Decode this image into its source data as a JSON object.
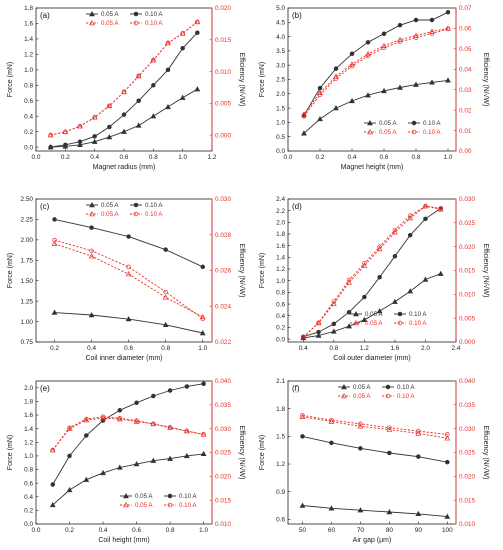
{
  "figure": {
    "colors": {
      "force": "#333333",
      "efficiency": "#e8312a",
      "axis": "#222222"
    }
  },
  "chart_data": [
    {
      "type": "line",
      "panel": "(a)",
      "xlabel": "Magnet radius (mm)",
      "ylabel": "Force (mN)",
      "y2label": "Efficiency (N/√W)",
      "xlim": [
        0.0,
        1.2
      ],
      "xticks": [
        0.0,
        0.2,
        0.4,
        0.6,
        0.8,
        1.0,
        1.2
      ],
      "ylim": [
        -0.05,
        1.8
      ],
      "yticks": [
        0.0,
        0.2,
        0.4,
        0.6,
        0.8,
        1.0,
        1.2,
        1.4,
        1.6,
        1.8
      ],
      "y2lim": [
        -0.0025,
        0.02
      ],
      "y2ticks": [
        0.0,
        0.005,
        0.01,
        0.015,
        0.02
      ],
      "y2ticklabels": [
        "0.000",
        "0.005",
        "0.010",
        "0.015",
        "0.020"
      ],
      "x": [
        0.1,
        0.2,
        0.3,
        0.4,
        0.5,
        0.6,
        0.7,
        0.8,
        0.9,
        1.0,
        1.1
      ],
      "series": [
        {
          "name": "0.05 A",
          "axis": "left",
          "style": "solid-triangle",
          "values": [
            0.0,
            0.01,
            0.03,
            0.07,
            0.13,
            0.2,
            0.28,
            0.4,
            0.52,
            0.64,
            0.75
          ]
        },
        {
          "name": "0.10 A",
          "axis": "left",
          "style": "solid-circle",
          "values": [
            0.0,
            0.03,
            0.07,
            0.14,
            0.26,
            0.42,
            0.6,
            0.8,
            1.0,
            1.28,
            1.48
          ]
        },
        {
          "name": "0.05 A",
          "axis": "right",
          "style": "dashed-triangle",
          "values": [
            0.0,
            0.0005,
            0.0014,
            0.0028,
            0.0046,
            0.0068,
            0.0093,
            0.0118,
            0.0145,
            0.016,
            0.0178
          ]
        },
        {
          "name": "0.10 A",
          "axis": "right",
          "style": "dashed-circle",
          "values": [
            0.0,
            0.0005,
            0.0014,
            0.0028,
            0.0046,
            0.0068,
            0.0093,
            0.0118,
            0.0145,
            0.016,
            0.0178
          ]
        }
      ],
      "legend": "top-left"
    },
    {
      "type": "line",
      "panel": "(b)",
      "xlabel": "Magnet height (mm)",
      "ylabel": "Force (mN)",
      "y2label": "Efficiency (N/√W)",
      "xlim": [
        0.0,
        1.05
      ],
      "xticks": [
        0.0,
        0.2,
        0.4,
        0.6,
        0.8,
        1.0
      ],
      "ylim": [
        0.0,
        5.0
      ],
      "yticks": [
        0.0,
        0.5,
        1.0,
        1.5,
        2.0,
        2.5,
        3.0,
        3.5,
        4.0,
        4.5,
        5.0
      ],
      "y2lim": [
        0.0,
        0.07
      ],
      "y2ticks": [
        0.0,
        0.01,
        0.02,
        0.03,
        0.04,
        0.05,
        0.06,
        0.07
      ],
      "y2ticklabels": [
        "0.00",
        "0.01",
        "0.02",
        "0.03",
        "0.04",
        "0.05",
        "0.06",
        "0.07"
      ],
      "x": [
        0.1,
        0.2,
        0.3,
        0.4,
        0.5,
        0.6,
        0.7,
        0.8,
        0.9,
        1.0
      ],
      "series": [
        {
          "name": "0.05 A",
          "axis": "left",
          "style": "solid-triangle",
          "values": [
            0.62,
            1.12,
            1.5,
            1.75,
            1.95,
            2.1,
            2.22,
            2.32,
            2.4,
            2.47
          ]
        },
        {
          "name": "0.10 A",
          "axis": "left",
          "style": "solid-circle",
          "values": [
            1.25,
            2.2,
            2.88,
            3.4,
            3.8,
            4.1,
            4.4,
            4.58,
            4.58,
            4.85
          ]
        },
        {
          "name": "0.05 A",
          "axis": "right",
          "style": "dashed-triangle",
          "values": [
            0.018,
            0.0285,
            0.0365,
            0.0425,
            0.0475,
            0.0515,
            0.0545,
            0.0565,
            0.0585,
            0.06
          ]
        },
        {
          "name": "0.10 A",
          "axis": "right",
          "style": "dashed-circle",
          "values": [
            0.017,
            0.0275,
            0.0355,
            0.0415,
            0.0465,
            0.0505,
            0.0535,
            0.0555,
            0.0575,
            0.0598
          ]
        }
      ],
      "legend": "bottom-right"
    },
    {
      "type": "line",
      "panel": "(c)",
      "xlabel": "Coil inner diameter (mm)",
      "ylabel": "Force (mN)",
      "y2label": "Efficiency (N/√W)",
      "xlim": [
        0.1,
        1.05
      ],
      "xticks": [
        0.2,
        0.4,
        0.6,
        0.8,
        1.0
      ],
      "ylim": [
        0.75,
        2.5
      ],
      "yticks": [
        0.75,
        1.0,
        1.25,
        1.5,
        1.75,
        2.0,
        2.25,
        2.5
      ],
      "y2lim": [
        0.022,
        0.03
      ],
      "y2ticks": [
        0.022,
        0.024,
        0.026,
        0.028,
        0.03
      ],
      "y2ticklabels": [
        "0.022",
        "0.024",
        "0.026",
        "0.028",
        "0.030"
      ],
      "x": [
        0.2,
        0.4,
        0.6,
        0.8,
        1.0
      ],
      "series": [
        {
          "name": "0.05 A",
          "axis": "left",
          "style": "solid-triangle",
          "values": [
            1.11,
            1.08,
            1.03,
            0.96,
            0.86
          ]
        },
        {
          "name": "0.10 A",
          "axis": "left",
          "style": "solid-circle",
          "values": [
            2.25,
            2.15,
            2.04,
            1.88,
            1.67
          ]
        },
        {
          "name": "0.05 A",
          "axis": "right",
          "style": "dashed-triangle",
          "values": [
            0.0275,
            0.0268,
            0.0258,
            0.0245,
            0.0234
          ]
        },
        {
          "name": "0.10 A",
          "axis": "right",
          "style": "dashed-circle",
          "values": [
            0.0277,
            0.0271,
            0.0262,
            0.0248,
            0.0233
          ]
        }
      ],
      "legend": "top-right"
    },
    {
      "type": "line",
      "panel": "(d)",
      "xlabel": "Coil outer diameter (mm)",
      "ylabel": "Force (mN)",
      "y2label": "Efficiency (N/√W)",
      "xlim": [
        0.2,
        2.4
      ],
      "xticks": [
        0.4,
        0.8,
        1.2,
        1.6,
        2.0,
        2.4
      ],
      "ylim": [
        -0.05,
        2.4
      ],
      "yticks": [
        0.0,
        0.2,
        0.4,
        0.6,
        0.8,
        1.0,
        1.2,
        1.4,
        1.6,
        1.8,
        2.0,
        2.2,
        2.4
      ],
      "y2lim": [
        0.0,
        0.03
      ],
      "y2ticks": [
        0.0,
        0.005,
        0.01,
        0.015,
        0.02,
        0.025,
        0.03
      ],
      "y2ticklabels": [
        "0.000",
        "0.005",
        "0.010",
        "0.015",
        "0.020",
        "0.025",
        "0.030"
      ],
      "x": [
        0.4,
        0.6,
        0.8,
        1.0,
        1.2,
        1.4,
        1.6,
        1.8,
        2.0,
        2.2
      ],
      "series": [
        {
          "name": "0.05 A",
          "axis": "left",
          "style": "solid-triangle",
          "values": [
            0.02,
            0.06,
            0.13,
            0.22,
            0.33,
            0.48,
            0.64,
            0.82,
            1.02,
            1.12
          ]
        },
        {
          "name": "0.10 A",
          "axis": "left",
          "style": "solid-circle",
          "values": [
            0.04,
            0.12,
            0.26,
            0.46,
            0.72,
            1.06,
            1.42,
            1.78,
            2.06,
            2.24
          ]
        },
        {
          "name": "0.05 A",
          "axis": "right",
          "style": "dashed-triangle",
          "values": [
            0.001,
            0.004,
            0.008,
            0.0125,
            0.016,
            0.0195,
            0.023,
            0.026,
            0.0285,
            0.0278
          ]
        },
        {
          "name": "0.10 A",
          "axis": "right",
          "style": "dashed-circle",
          "values": [
            0.001,
            0.004,
            0.0085,
            0.013,
            0.0165,
            0.02,
            0.0235,
            0.0265,
            0.0285,
            0.028
          ]
        }
      ],
      "legend": "bottom-center"
    },
    {
      "type": "line",
      "panel": "(e)",
      "xlabel": "Coil height (mm)",
      "ylabel": "Force (mN)",
      "y2label": "Efficiency (N/√W)",
      "xlim": [
        0.0,
        1.05
      ],
      "xticks": [
        0.0,
        0.2,
        0.4,
        0.6,
        0.8,
        1.0
      ],
      "ylim": [
        0.0,
        2.1
      ],
      "yticks": [
        0.0,
        0.2,
        0.4,
        0.6,
        0.8,
        1.0,
        1.2,
        1.4,
        1.6,
        1.8,
        2.0
      ],
      "y2lim": [
        0.01,
        0.04
      ],
      "y2ticks": [
        0.01,
        0.015,
        0.02,
        0.025,
        0.03,
        0.035,
        0.04
      ],
      "y2ticklabels": [
        "0.010",
        "0.015",
        "0.020",
        "0.025",
        "0.030",
        "0.035",
        "0.040"
      ],
      "x": [
        0.1,
        0.2,
        0.3,
        0.4,
        0.5,
        0.6,
        0.7,
        0.8,
        0.9,
        1.0
      ],
      "series": [
        {
          "name": "0.05 A",
          "axis": "left",
          "style": "solid-triangle",
          "values": [
            0.28,
            0.5,
            0.65,
            0.75,
            0.83,
            0.88,
            0.93,
            0.96,
            1.0,
            1.03
          ]
        },
        {
          "name": "0.10 A",
          "axis": "left",
          "style": "solid-circle",
          "values": [
            0.58,
            1.0,
            1.3,
            1.52,
            1.67,
            1.78,
            1.88,
            1.96,
            2.02,
            2.06
          ]
        },
        {
          "name": "0.05 A",
          "axis": "right",
          "style": "dashed-triangle",
          "values": [
            0.0255,
            0.03,
            0.0318,
            0.0322,
            0.032,
            0.0315,
            0.031,
            0.0302,
            0.0295,
            0.0288
          ]
        },
        {
          "name": "0.10 A",
          "axis": "right",
          "style": "dashed-circle",
          "values": [
            0.0255,
            0.0302,
            0.032,
            0.0325,
            0.0322,
            0.0317,
            0.031,
            0.0303,
            0.0295,
            0.0288
          ]
        }
      ],
      "legend": "bottom-right"
    },
    {
      "type": "line",
      "panel": "(f)",
      "xlabel": "Air gap (μm)",
      "ylabel": "Force (mN)",
      "y2label": "Efficiency (N/√W)",
      "xlim": [
        45,
        103
      ],
      "xticks": [
        50,
        60,
        70,
        80,
        90,
        100
      ],
      "ylim": [
        0.55,
        2.1
      ],
      "yticks": [
        0.6,
        0.9,
        1.2,
        1.5,
        1.8,
        2.1
      ],
      "y2lim": [
        0.01,
        0.04
      ],
      "y2ticks": [
        0.01,
        0.015,
        0.02,
        0.025,
        0.03,
        0.035,
        0.04
      ],
      "y2ticklabels": [
        "0.010",
        "0.015",
        "0.020",
        "0.025",
        "0.030",
        "0.035",
        "0.040"
      ],
      "x": [
        50,
        60,
        70,
        80,
        90,
        100
      ],
      "series": [
        {
          "name": "0.05 A",
          "axis": "left",
          "style": "solid-triangle",
          "values": [
            0.75,
            0.72,
            0.7,
            0.68,
            0.66,
            0.63
          ]
        },
        {
          "name": "0.10 A",
          "axis": "left",
          "style": "solid-circle",
          "values": [
            1.5,
            1.43,
            1.37,
            1.32,
            1.28,
            1.22
          ]
        },
        {
          "name": "0.05 A",
          "axis": "right",
          "style": "dashed-triangle",
          "values": [
            0.0325,
            0.0315,
            0.0305,
            0.0298,
            0.029,
            0.028
          ]
        },
        {
          "name": "0.10 A",
          "axis": "right",
          "style": "dashed-circle",
          "values": [
            0.0328,
            0.0318,
            0.031,
            0.0302,
            0.0295,
            0.0288
          ]
        }
      ],
      "legend": "top-left"
    }
  ]
}
